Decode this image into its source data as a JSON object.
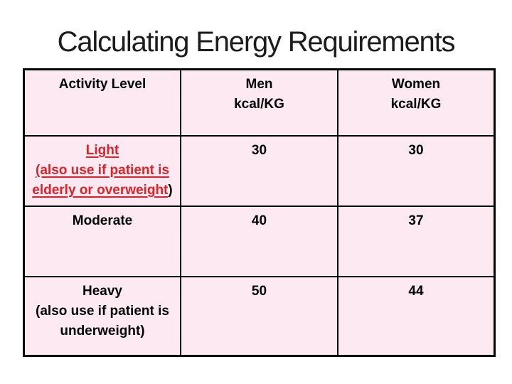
{
  "slide": {
    "title": "Calculating Energy Requirements"
  },
  "table": {
    "header": {
      "activity": "Activity Level",
      "men_line1": "Men",
      "men_line2": "kcal/KG",
      "women_line1": "Women",
      "women_line2": "kcal/KG"
    },
    "rows": {
      "light": {
        "line1": "Light",
        "line2": "(also use if patient is",
        "line3": "elderly or overweight",
        "line3_suffix": ")",
        "men": "30",
        "women": "30"
      },
      "moderate": {
        "label": "Moderate",
        "men": "40",
        "women": "37"
      },
      "heavy": {
        "line1": "Heavy",
        "line2": "(also use if patient is",
        "line3": "underweight)",
        "men": "50",
        "women": "44"
      }
    }
  },
  "colors": {
    "slide_background": "#ffffff",
    "cell_background": "#fce9f1",
    "border": "#000000",
    "highlight_red": "#dd2329",
    "title_text": "#1c1c1c"
  }
}
